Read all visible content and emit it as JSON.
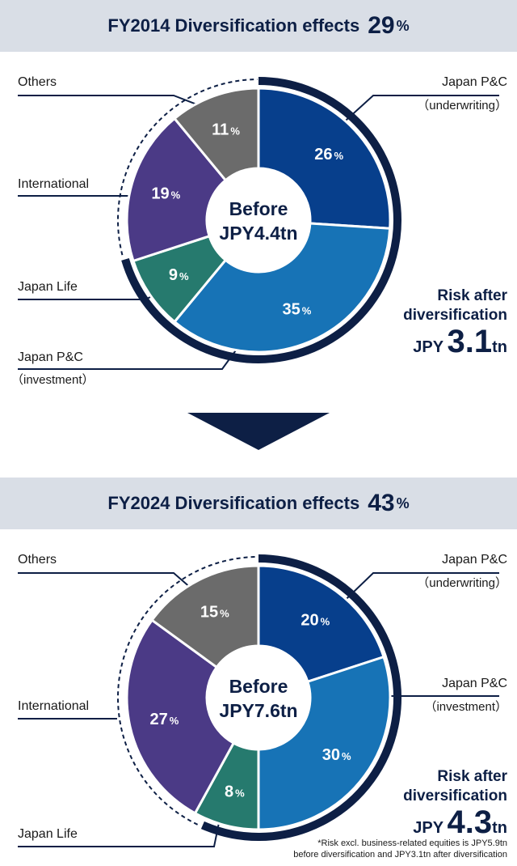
{
  "colors": {
    "header_bg": "#d9dee6",
    "navy": "#0d1f45",
    "japan_pc_underwriting": "#073f8c",
    "japan_pc_investment": "#1773b6",
    "japan_life": "#267a6e",
    "international": "#4b3a86",
    "others": "#6b6b6b"
  },
  "arrow": {
    "icon": "down-triangle-icon"
  },
  "charts": [
    {
      "title": "FY2014 Diversification effects",
      "effect_value": "29",
      "effect_unit": "%",
      "center_line1": "Before",
      "center_line2": "JPY4.4tn",
      "risk_title_line1": "Risk after",
      "risk_title_line2": "diversification",
      "risk_currency": "JPY",
      "risk_value": "3.1",
      "risk_unit": "tn",
      "labels": {
        "others": "Others",
        "international": "International",
        "japan_life": "Japan Life",
        "japan_pc_investment": "Japan P&C",
        "japan_pc_investment_sub": "（investment）",
        "japan_pc_underwriting": "Japan P&C",
        "japan_pc_underwriting_sub": "（underwriting）"
      }
    },
    {
      "title": "FY2024 Diversification effects",
      "effect_value": "43",
      "effect_unit": "%",
      "center_line1": "Before",
      "center_line2": "JPY7.6tn",
      "risk_title_line1": "Risk after",
      "risk_title_line2": "diversification",
      "risk_currency": "JPY",
      "risk_value": "4.3",
      "risk_unit": "tn",
      "labels": {
        "others": "Others",
        "international": "International",
        "japan_life": "Japan Life",
        "japan_pc_investment": "Japan P&C",
        "japan_pc_investment_sub": "（investment）",
        "japan_pc_underwriting": "Japan P&C",
        "japan_pc_underwriting_sub": "（underwriting）"
      }
    }
  ],
  "chart_data": [
    {
      "type": "pie",
      "title": "FY2014 Diversification effects 29%",
      "categories": [
        "Japan P&C (underwriting)",
        "Japan P&C (investment)",
        "Japan Life",
        "International",
        "Others"
      ],
      "values": [
        26,
        35,
        9,
        19,
        11
      ],
      "unit": "%",
      "total_before": "JPY4.4tn",
      "risk_after_diversification": "JPY3.1tn"
    },
    {
      "type": "pie",
      "title": "FY2024 Diversification effects 43%",
      "categories": [
        "Japan P&C (underwriting)",
        "Japan P&C (investment)",
        "Japan Life",
        "International",
        "Others"
      ],
      "values": [
        20,
        30,
        8,
        27,
        15
      ],
      "unit": "%",
      "total_before": "JPY7.6tn",
      "risk_after_diversification": "JPY4.3tn"
    }
  ],
  "footnote_line1": "*Risk excl. business-related equities is JPY5.9tn",
  "footnote_line2": "before diversification and JPY3.1tn after diversification"
}
